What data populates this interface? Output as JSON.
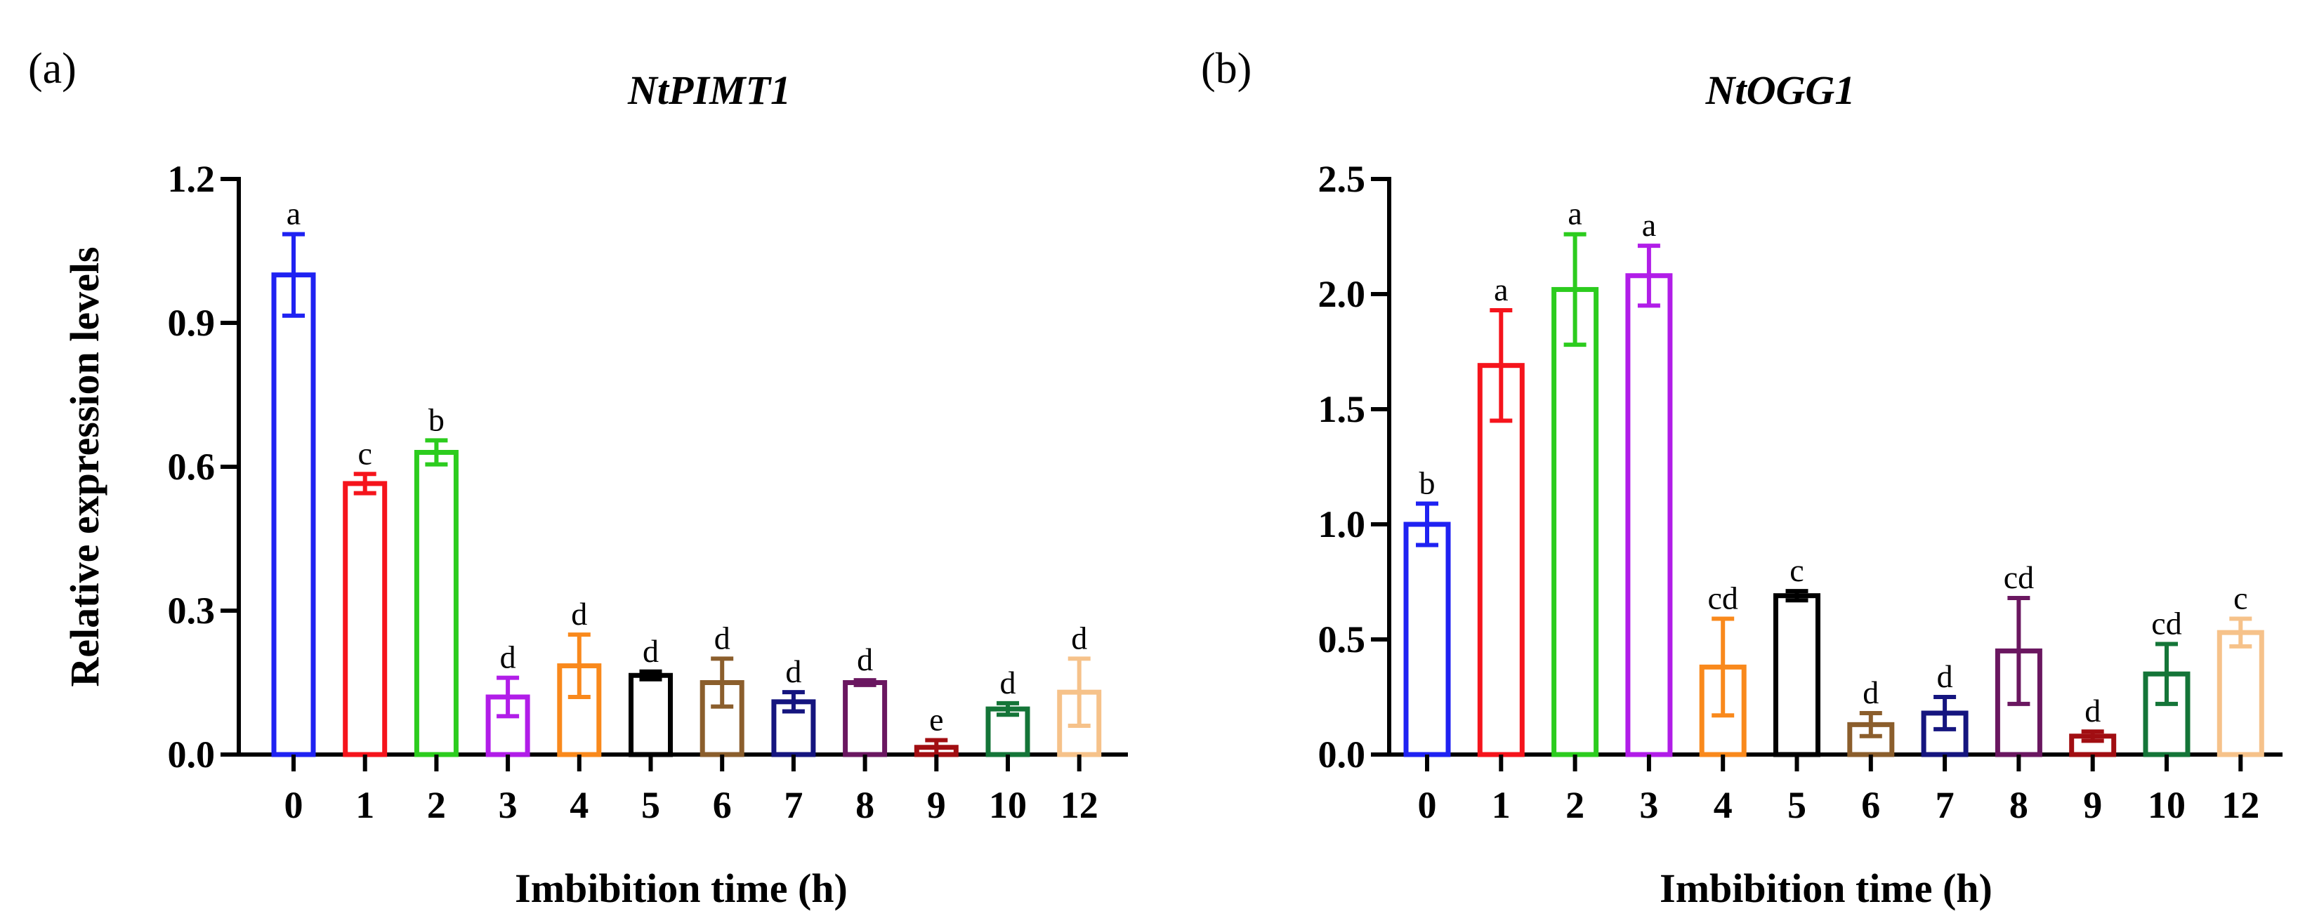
{
  "chart_data": [
    {
      "type": "bar",
      "panel_label": "(a)",
      "title": "NtPIMT1",
      "xlabel": "Imbibition time (h)",
      "ylabel": "Relative expression levels",
      "ylim": [
        0,
        1.2
      ],
      "yticks": [
        "0.0",
        "0.3",
        "0.6",
        "0.9",
        "1.2"
      ],
      "ytick_values": [
        0,
        0.3,
        0.6,
        0.9,
        1.2
      ],
      "categories": [
        "0",
        "1",
        "2",
        "3",
        "4",
        "5",
        "6",
        "7",
        "8",
        "9",
        "10",
        "12"
      ],
      "values": [
        1.0,
        0.565,
        0.63,
        0.12,
        0.185,
        0.165,
        0.15,
        0.11,
        0.15,
        0.015,
        0.095,
        0.13
      ],
      "errors": [
        0.085,
        0.02,
        0.025,
        0.04,
        0.065,
        0.008,
        0.05,
        0.02,
        0.005,
        0.015,
        0.012,
        0.07
      ],
      "significance": [
        "a",
        "c",
        "b",
        "d",
        "d",
        "d",
        "d",
        "d",
        "d",
        "e",
        "d",
        "d"
      ],
      "colors": [
        "#1f22f2",
        "#f5141c",
        "#2ccc1e",
        "#b11de8",
        "#f9891c",
        "#000000",
        "#8b5e2c",
        "#15157f",
        "#6a1760",
        "#a10e12",
        "#147538",
        "#f6c28a"
      ]
    },
    {
      "type": "bar",
      "panel_label": "(b)",
      "title": "NtOGG1",
      "xlabel": "Imbibition time (h)",
      "ylabel": "",
      "ylim": [
        0,
        2.5
      ],
      "yticks": [
        "0.0",
        "0.5",
        "1.0",
        "1.5",
        "2.0",
        "2.5"
      ],
      "ytick_values": [
        0,
        0.5,
        1.0,
        1.5,
        2.0,
        2.5
      ],
      "categories": [
        "0",
        "1",
        "2",
        "3",
        "4",
        "5",
        "6",
        "7",
        "8",
        "9",
        "10",
        "12"
      ],
      "values": [
        1.0,
        1.69,
        2.02,
        2.08,
        0.38,
        0.69,
        0.13,
        0.18,
        0.45,
        0.08,
        0.35,
        0.53
      ],
      "errors": [
        0.09,
        0.24,
        0.24,
        0.13,
        0.21,
        0.02,
        0.05,
        0.07,
        0.23,
        0.02,
        0.13,
        0.06
      ],
      "significance": [
        "b",
        "a",
        "a",
        "a",
        "cd",
        "c",
        "d",
        "d",
        "cd",
        "d",
        "cd",
        "c"
      ],
      "colors": [
        "#1f22f2",
        "#f5141c",
        "#2ccc1e",
        "#b11de8",
        "#f9891c",
        "#000000",
        "#8b5e2c",
        "#15157f",
        "#6a1760",
        "#a10e12",
        "#147538",
        "#f6c28a"
      ]
    }
  ]
}
